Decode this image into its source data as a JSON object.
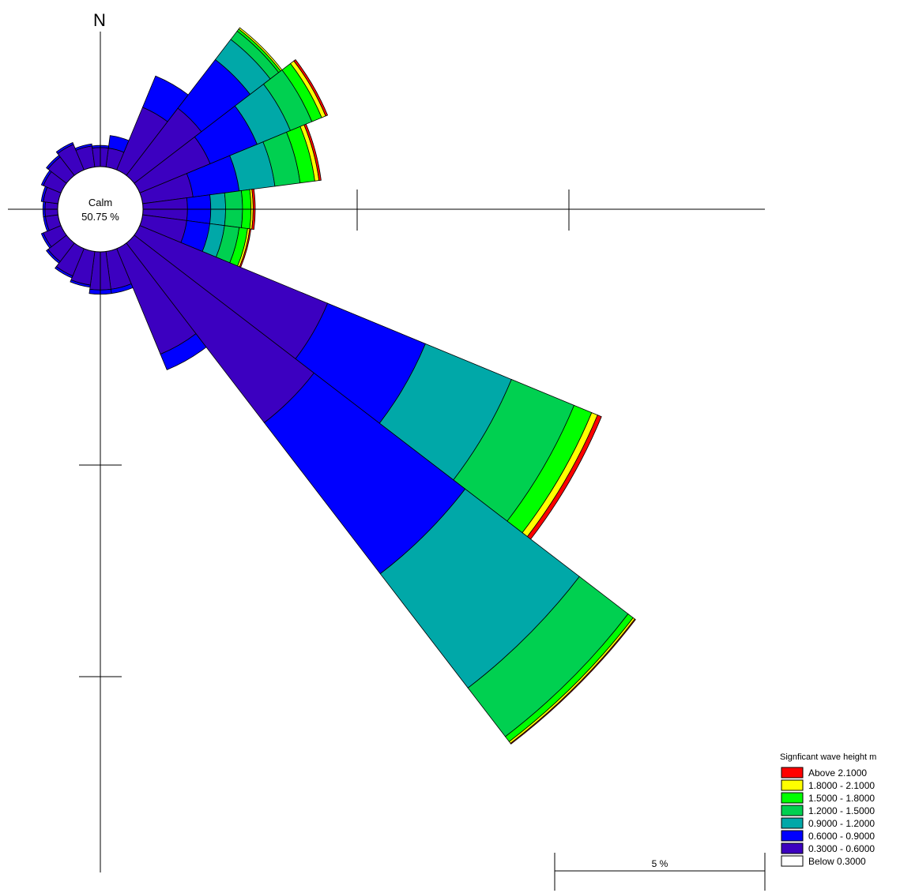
{
  "chart_data": {
    "type": "rose",
    "north_label": "N",
    "calm": {
      "label": "Calm",
      "value": "50.75 %"
    },
    "scale_label": "5 %",
    "legend": {
      "title": "Signficant wave height m",
      "classes": [
        {
          "label": "Above   2.1000",
          "color": "#ff0000"
        },
        {
          "label": "1.8000 - 2.1000",
          "color": "#ffff00"
        },
        {
          "label": "1.5000 - 1.8000",
          "color": "#00ff00"
        },
        {
          "label": "1.2000 - 1.5000",
          "color": "#00d050"
        },
        {
          "label": "0.9000 - 1.2000",
          "color": "#00a8a8"
        },
        {
          "label": "0.6000 - 0.9000",
          "color": "#0000ff"
        },
        {
          "label": "0.3000 - 0.6000",
          "color": "#3c00c0"
        },
        {
          "label": "Below   0.3000",
          "color": "#ffffff"
        }
      ]
    },
    "bin_colors_inner_to_outer": [
      "#3c00c0",
      "#0000ff",
      "#00a8a8",
      "#00d050",
      "#00ff00",
      "#ffff00",
      "#ff0000"
    ],
    "sectors": [
      {
        "direction_deg": 15,
        "cumulative_percent": [
          0.45,
          0.75
        ]
      },
      {
        "direction_deg": 30,
        "cumulative_percent": [
          1.6,
          2.4
        ]
      },
      {
        "direction_deg": 45,
        "cumulative_percent": [
          2.0,
          3.45,
          4.05,
          4.3,
          4.36,
          4.4
        ]
      },
      {
        "direction_deg": 60,
        "cumulative_percent": [
          1.8,
          3.0,
          3.85,
          4.4,
          4.65,
          4.75,
          4.8
        ]
      },
      {
        "direction_deg": 75,
        "cumulative_percent": [
          1.2,
          2.3,
          3.15,
          3.75,
          4.1,
          4.2,
          4.25
        ]
      },
      {
        "direction_deg": 90,
        "cumulative_percent": [
          1.05,
          1.6,
          1.95,
          2.35,
          2.55,
          2.6,
          2.65
        ]
      },
      {
        "direction_deg": 105,
        "cumulative_percent": [
          1.05,
          1.6,
          1.95,
          2.3,
          2.5,
          2.55,
          2.58
        ]
      },
      {
        "direction_deg": 120,
        "cumulative_percent": [
          4.8,
          7.3,
          9.5,
          11.1,
          11.55,
          11.7,
          11.8
        ]
      },
      {
        "direction_deg": 135,
        "cumulative_percent": [
          5.35,
          9.85,
          13.25,
          14.7,
          14.85,
          14.9,
          14.92
        ]
      },
      {
        "direction_deg": 150,
        "cumulative_percent": [
          2.7,
          3.1
        ]
      },
      {
        "direction_deg": 165,
        "cumulative_percent": [
          0.9,
          1.0
        ]
      },
      {
        "direction_deg": 180,
        "cumulative_percent": [
          0.9,
          1.0
        ]
      },
      {
        "direction_deg": 195,
        "cumulative_percent": [
          0.8,
          0.85
        ]
      },
      {
        "direction_deg": 210,
        "cumulative_percent": [
          0.7,
          0.75
        ]
      },
      {
        "direction_deg": 225,
        "cumulative_percent": [
          0.55,
          0.6
        ]
      },
      {
        "direction_deg": 240,
        "cumulative_percent": [
          0.45,
          0.5
        ]
      },
      {
        "direction_deg": 255,
        "cumulative_percent": [
          0.3,
          0.35
        ]
      },
      {
        "direction_deg": 270,
        "cumulative_percent": [
          0.3,
          0.35
        ]
      },
      {
        "direction_deg": 285,
        "cumulative_percent": [
          0.35,
          0.4
        ]
      },
      {
        "direction_deg": 300,
        "cumulative_percent": [
          0.45,
          0.5
        ]
      },
      {
        "direction_deg": 315,
        "cumulative_percent": [
          0.55,
          0.6
        ]
      },
      {
        "direction_deg": 330,
        "cumulative_percent": [
          0.65,
          0.7
        ]
      },
      {
        "direction_deg": 345,
        "cumulative_percent": [
          0.5,
          0.55
        ]
      },
      {
        "direction_deg": 0,
        "cumulative_percent": [
          0.45,
          0.5
        ]
      }
    ]
  }
}
